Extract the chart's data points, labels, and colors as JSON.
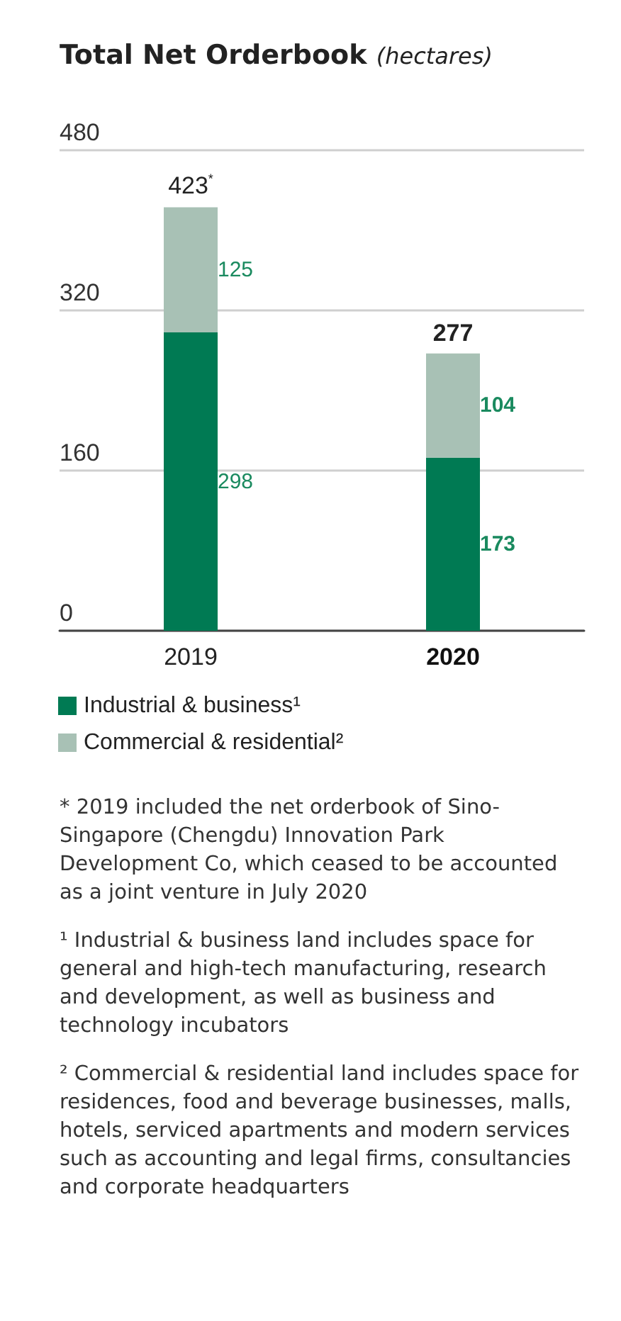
{
  "chart_data": {
    "type": "bar",
    "title": "Total Net Orderbook",
    "subtitle": "(hectares)",
    "stacked": true,
    "categories": [
      "2019",
      "2020"
    ],
    "series": [
      {
        "name": "Industrial & business¹",
        "color": "#007a53",
        "values": [
          298,
          173
        ],
        "value_labels": [
          "298",
          "173"
        ]
      },
      {
        "name": "Commercial & residential²",
        "color": "#a8c1b5",
        "values": [
          125,
          104
        ],
        "value_labels": [
          "125",
          "104"
        ]
      }
    ],
    "totals": [
      "423$^{*}$",
      "277"
    ],
    "ylim": [
      0,
      480
    ],
    "yticks": [
      0,
      160,
      320,
      480
    ],
    "grid": "y",
    "legend": "bottom",
    "annotations": [
      "* 2019 included the net orderbook of Sino-Singapore (Chengdu) Innovation Park Development Co, which ceased to be accounted as a joint venture in July 2020",
      "¹ Industrial & business land includes space for general and high-tech manufacturing, research and development, as well as business and technology incubators",
      "² Commercial & residential land includes space for residences, food and beverage businesses, malls, hotels, serviced apartments and modern services such as accounting and legal firms, consultancies and corporate headquarters"
    ]
  }
}
